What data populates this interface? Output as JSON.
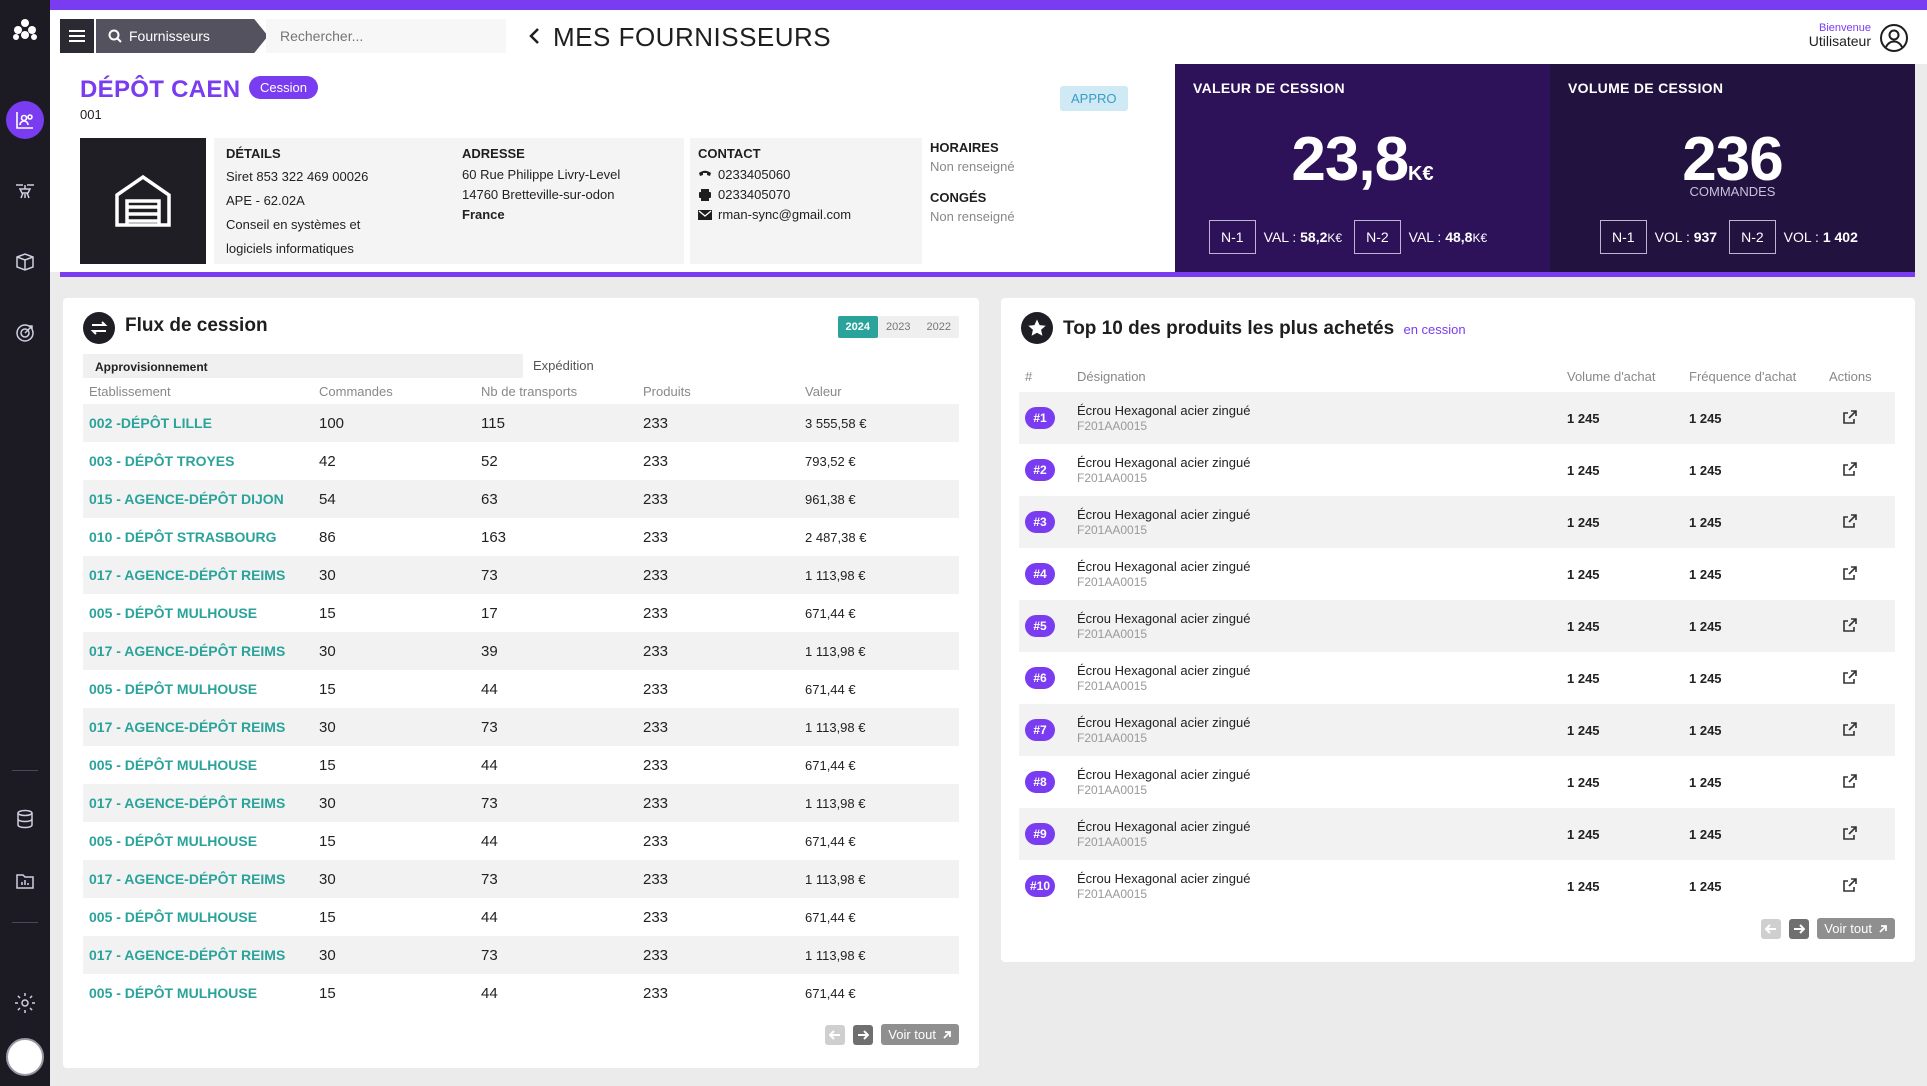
{
  "topbar": {
    "search_tab": "Fournisseurs",
    "search_placeholder": "Rechercher...",
    "page_title": "MES FOURNISSEURS",
    "welcome": "Bienvenue",
    "user": "Utilisateur"
  },
  "sidebar": {
    "items": [
      "logo-icon",
      "chart-users-icon",
      "drone-icon",
      "box-icon",
      "target-icon",
      "database-icon",
      "folder-chart-icon",
      "settings-icon",
      "avatar"
    ]
  },
  "depot": {
    "name": "DÉPÔT CAEN",
    "badge": "Cession",
    "code": "001",
    "type_badge": "APPRO",
    "details": {
      "title": "DÉTAILS",
      "siret": "Siret 853 322 469 00026",
      "ape": "APE - 62.02A",
      "activity1": "Conseil en systèmes et",
      "activity2": "logiciels informatiques"
    },
    "adresse": {
      "title": "ADRESSE",
      "line1": "60 Rue Philippe Livry-Level",
      "line2": "14760 Bretteville-sur-odon",
      "country": "France"
    },
    "contact": {
      "title": "CONTACT",
      "phone": "0233405060",
      "fax": "0233405070",
      "email": "rman-sync@gmail.com"
    },
    "horaires": {
      "title": "HORAIRES",
      "value": "Non renseigné"
    },
    "conges": {
      "title": "CONGÉS",
      "value": "Non renseigné"
    }
  },
  "kpi_valeur": {
    "title": "VALEUR DE CESSION",
    "value": "23,8",
    "unit": "K€",
    "n1_label": "N-1",
    "n1_text": "VAL :",
    "n1_value": "58,2",
    "n1_unit": "K€",
    "n2_label": "N-2",
    "n2_text": "VAL :",
    "n2_value": "48,8",
    "n2_unit": "K€"
  },
  "kpi_volume": {
    "title": "VOLUME DE CESSION",
    "value": "236",
    "unit": "COMMANDES",
    "n1_label": "N-1",
    "n1_text": "VOL :",
    "n1_value": "937",
    "n2_label": "N-2",
    "n2_text": "VOL :",
    "n2_value": "1 402"
  },
  "flux": {
    "title": "Flux de cession",
    "years": [
      "2024",
      "2023",
      "2022"
    ],
    "active_year": "2024",
    "tab_active": "Approvisionnement",
    "tab_other": "Expédition",
    "columns": [
      "Etablissement",
      "Commandes",
      "Nb de transports",
      "Produits",
      "Valeur"
    ],
    "rows": [
      [
        "002 -DÉPÔT LILLE",
        "100",
        "115",
        "233",
        "3 555,58 €"
      ],
      [
        "003 - DÉPÔT TROYES",
        "42",
        "52",
        "233",
        "793,52 €"
      ],
      [
        "015 - AGENCE-DÉPÔT DIJON",
        "54",
        "63",
        "233",
        "961,38 €"
      ],
      [
        "010 - DÉPÔT STRASBOURG",
        "86",
        "163",
        "233",
        "2 487,38 €"
      ],
      [
        "017 - AGENCE-DÉPÔT REIMS",
        "30",
        "73",
        "233",
        "1 113,98 €"
      ],
      [
        "005 - DÉPÔT MULHOUSE",
        "15",
        "17",
        "233",
        "671,44 €"
      ],
      [
        "017 - AGENCE-DÉPÔT REIMS",
        "30",
        "39",
        "233",
        "1 113,98 €"
      ],
      [
        "005 - DÉPÔT MULHOUSE",
        "15",
        "44",
        "233",
        "671,44 €"
      ],
      [
        "017 - AGENCE-DÉPÔT REIMS",
        "30",
        "73",
        "233",
        "1 113,98 €"
      ],
      [
        "005 - DÉPÔT MULHOUSE",
        "15",
        "44",
        "233",
        "671,44 €"
      ],
      [
        "017 - AGENCE-DÉPÔT REIMS",
        "30",
        "73",
        "233",
        "1 113,98 €"
      ],
      [
        "005 - DÉPÔT MULHOUSE",
        "15",
        "44",
        "233",
        "671,44 €"
      ],
      [
        "017 - AGENCE-DÉPÔT REIMS",
        "30",
        "73",
        "233",
        "1 113,98 €"
      ],
      [
        "005 - DÉPÔT MULHOUSE",
        "15",
        "44",
        "233",
        "671,44 €"
      ],
      [
        "017 - AGENCE-DÉPÔT REIMS",
        "30",
        "73",
        "233",
        "1 113,98 €"
      ],
      [
        "005 - DÉPÔT MULHOUSE",
        "15",
        "44",
        "233",
        "671,44 €"
      ]
    ],
    "see_all": "Voir tout"
  },
  "top10": {
    "title": "Top 10 des produits les plus achetés",
    "subtitle": "en cession",
    "columns": [
      "#",
      "Désignation",
      "Volume d'achat",
      "Fréquence d'achat",
      "Actions"
    ],
    "rows": [
      {
        "rank": "#1",
        "name": "Écrou Hexagonal acier zingué",
        "code": "F201AA0015",
        "volume": "1 245",
        "frequency": "1 245"
      },
      {
        "rank": "#2",
        "name": "Écrou Hexagonal acier zingué",
        "code": "F201AA0015",
        "volume": "1 245",
        "frequency": "1 245"
      },
      {
        "rank": "#3",
        "name": "Écrou Hexagonal acier zingué",
        "code": "F201AA0015",
        "volume": "1 245",
        "frequency": "1 245"
      },
      {
        "rank": "#4",
        "name": "Écrou Hexagonal acier zingué",
        "code": "F201AA0015",
        "volume": "1 245",
        "frequency": "1 245"
      },
      {
        "rank": "#5",
        "name": "Écrou Hexagonal acier zingué",
        "code": "F201AA0015",
        "volume": "1 245",
        "frequency": "1 245"
      },
      {
        "rank": "#6",
        "name": "Écrou Hexagonal acier zingué",
        "code": "F201AA0015",
        "volume": "1 245",
        "frequency": "1 245"
      },
      {
        "rank": "#7",
        "name": "Écrou Hexagonal acier zingué",
        "code": "F201AA0015",
        "volume": "1 245",
        "frequency": "1 245"
      },
      {
        "rank": "#8",
        "name": "Écrou Hexagonal acier zingué",
        "code": "F201AA0015",
        "volume": "1 245",
        "frequency": "1 245"
      },
      {
        "rank": "#9",
        "name": "Écrou Hexagonal acier zingué",
        "code": "F201AA0015",
        "volume": "1 245",
        "frequency": "1 245"
      },
      {
        "rank": "#10",
        "name": "Écrou Hexagonal acier zingué",
        "code": "F201AA0015",
        "volume": "1 245",
        "frequency": "1 245"
      }
    ],
    "see_all": "Voir tout"
  },
  "colors": {
    "accent": "#7a3cf0",
    "teal": "#2aa39b",
    "kpi_dark": "#2d1259",
    "sidebar": "#1c1b24"
  }
}
